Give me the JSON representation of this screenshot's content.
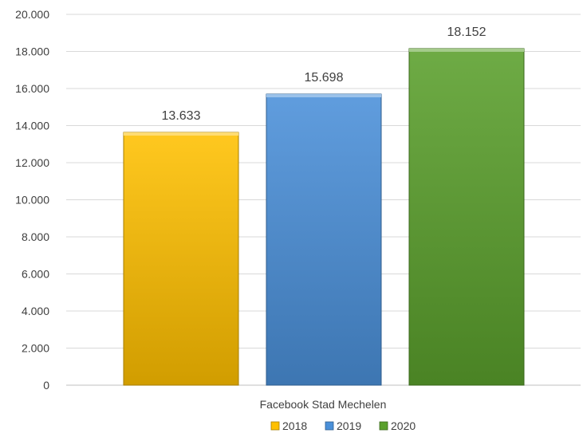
{
  "chart_data": {
    "type": "bar",
    "categories": [
      "Facebook Stad Mechelen"
    ],
    "series": [
      {
        "name": "2018",
        "values": [
          13633
        ],
        "label": "13.633",
        "color": "#FFC000"
      },
      {
        "name": "2019",
        "values": [
          15698
        ],
        "label": "15.698",
        "color": "#4A90D9"
      },
      {
        "name": "2020",
        "values": [
          18152
        ],
        "label": "18.152",
        "color": "#5AA02C"
      }
    ],
    "y_ticks": [
      "0",
      "2.000",
      "4.000",
      "6.000",
      "8.000",
      "10.000",
      "12.000",
      "14.000",
      "16.000",
      "18.000",
      "20.000"
    ],
    "ylim": [
      0,
      20000
    ],
    "grid": true,
    "legend_position": "bottom"
  }
}
